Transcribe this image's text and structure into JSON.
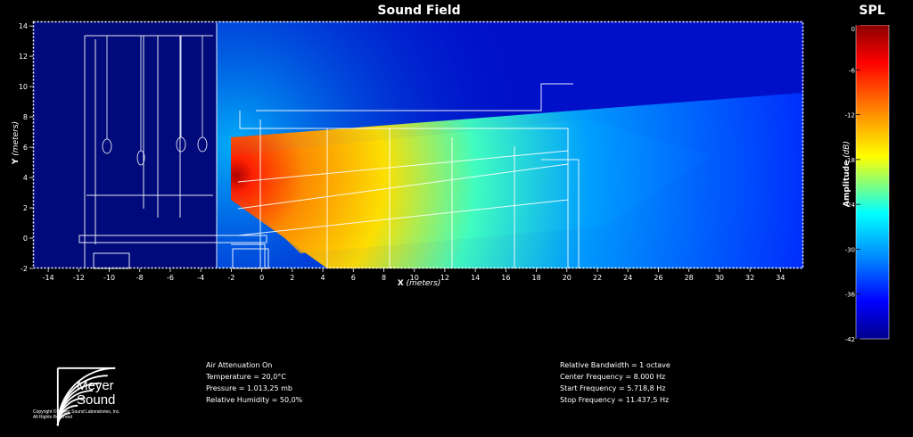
{
  "chart_data": {
    "type": "heatmap",
    "title": "Sound Field",
    "xlabel": "X",
    "xlabel_unit": "(meters)",
    "ylabel": "Y",
    "ylabel_unit": "(meters)",
    "xlim": [
      -15,
      35.5
    ],
    "ylim": [
      -2,
      14.3
    ],
    "x_ticks": [
      -14,
      -12,
      -10,
      -8,
      -6,
      -4,
      -2,
      0,
      2,
      4,
      6,
      8,
      10,
      12,
      14,
      16,
      18,
      20,
      22,
      24,
      26,
      28,
      30,
      32,
      34
    ],
    "y_ticks": [
      -2,
      0,
      2,
      4,
      6,
      8,
      10,
      12,
      14
    ],
    "source_position": [
      -2.5,
      3.5
    ],
    "colorbar": {
      "title": "SPL",
      "label": "Amplitude",
      "unit": "(dB)",
      "range": [
        -42,
        0
      ],
      "ticks": [
        0,
        -6,
        -12,
        -18,
        -24,
        -30,
        -36,
        -42
      ],
      "colormap": [
        "#8b0000",
        "#ff0000",
        "#ff8c00",
        "#ffff00",
        "#00ffff",
        "#0080ff",
        "#0000ff",
        "#00008b"
      ]
    }
  },
  "info_left": [
    "Air Attenuation On",
    "Temperature = 20,0°C",
    "Pressure = 1.013,25  mb",
    "Relative Humidity = 50,0%"
  ],
  "info_right": [
    "Relative Bandwidth = 1 octave",
    "Center Frequency = 8.000 Hz",
    "Start Frequency = 5.718,8 Hz",
    "Stop Frequency = 11.437,5 Hz"
  ],
  "logo": {
    "name_line1": "Meyer",
    "name_line2": "Sound",
    "copyright_line1": "Copyright © Meyer Sound Laboratories, Inc.",
    "copyright_line2": "All Rights Reserved"
  }
}
